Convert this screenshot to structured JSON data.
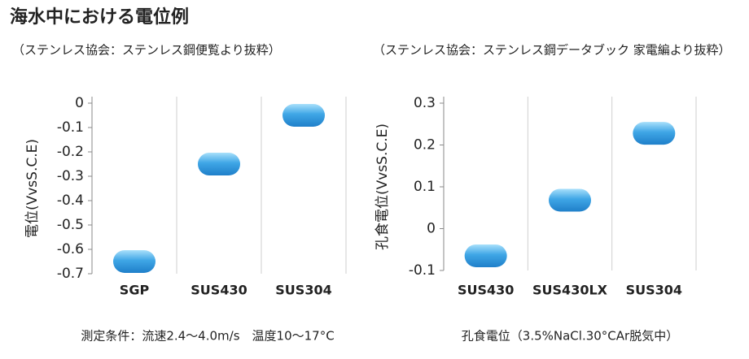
{
  "title": "海水中における電位例",
  "chart_data": [
    {
      "type": "scatter",
      "subtitle": "（ステンレス協会：ステンレス鋼便覧より抜粋）",
      "ylabel": "電位(VvsS.C.E)",
      "note": "測定条件：流速2.4～4.0m/s　温度10～17°C",
      "categories": [
        "SGP",
        "SUS430",
        "SUS304"
      ],
      "values": [
        -0.65,
        -0.25,
        -0.05
      ],
      "color": "#1f7fc9",
      "ylim": [
        -0.7,
        0
      ],
      "yticks": [
        0,
        -0.1,
        -0.2,
        -0.3,
        -0.4,
        -0.5,
        -0.6,
        -0.7
      ],
      "grid": true
    },
    {
      "type": "scatter",
      "subtitle": "（ステンレス協会：ステンレス鋼データブック 家電編より抜粋）",
      "ylabel": "孔食電位(VvsS.C.E)",
      "note": "孔食電位（3.5%NaCl.30°CAr脱気中）",
      "categories": [
        "SUS430",
        "SUS430LX",
        "SUS304"
      ],
      "values": [
        -0.065,
        0.068,
        0.228
      ],
      "color": "#1f7fc9",
      "ylim": [
        -0.1,
        0.3
      ],
      "yticks": [
        0.3,
        0.2,
        0.1,
        0,
        -0.1
      ],
      "grid": true
    }
  ]
}
